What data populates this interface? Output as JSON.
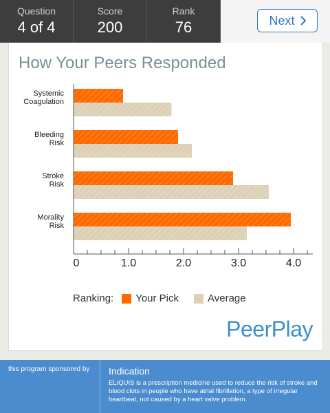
{
  "header": {
    "question_label": "Question",
    "question_value": "4 of 4",
    "score_label": "Score",
    "score_value": "200",
    "rank_label": "Rank",
    "rank_value": "76",
    "next_label": "Next",
    "next_icon": "chevron-right-icon"
  },
  "card": {
    "title": "How Your Peers Responded"
  },
  "legend": {
    "prefix": "Ranking:",
    "your_pick": "Your Pick",
    "average": "Average"
  },
  "brand": {
    "logo_text": "PeerPlay"
  },
  "footer": {
    "sponsor_text": "this program sponsored by",
    "indication_title": "Indication",
    "indication_text": "ELIQUIS is a prescription medicine used to reduce the risk of stroke and blood clots in people who have atrial fibrillation, a type of irregular heartbeat, not caused by a heart valve problem."
  },
  "colors": {
    "your_pick": "#ff6a00",
    "average": "#dcd0b6",
    "accent": "#2a78c4",
    "footer": "#4a8ccd"
  },
  "chart_data": {
    "type": "bar",
    "orientation": "horizontal",
    "categories": [
      "Systemic\nCoagulation",
      "Bleeding\nRisk",
      "Stroke\nRisk",
      "Morality\nRisk"
    ],
    "series": [
      {
        "name": "Your Pick",
        "values": [
          0.9,
          1.9,
          2.9,
          3.95
        ]
      },
      {
        "name": "Average",
        "values": [
          1.78,
          2.15,
          3.55,
          3.15
        ]
      }
    ],
    "xticks": [
      "0",
      "1.0",
      "2.0",
      "3.0",
      "4.0"
    ],
    "xlim": [
      0,
      4.2
    ],
    "grid": false
  }
}
